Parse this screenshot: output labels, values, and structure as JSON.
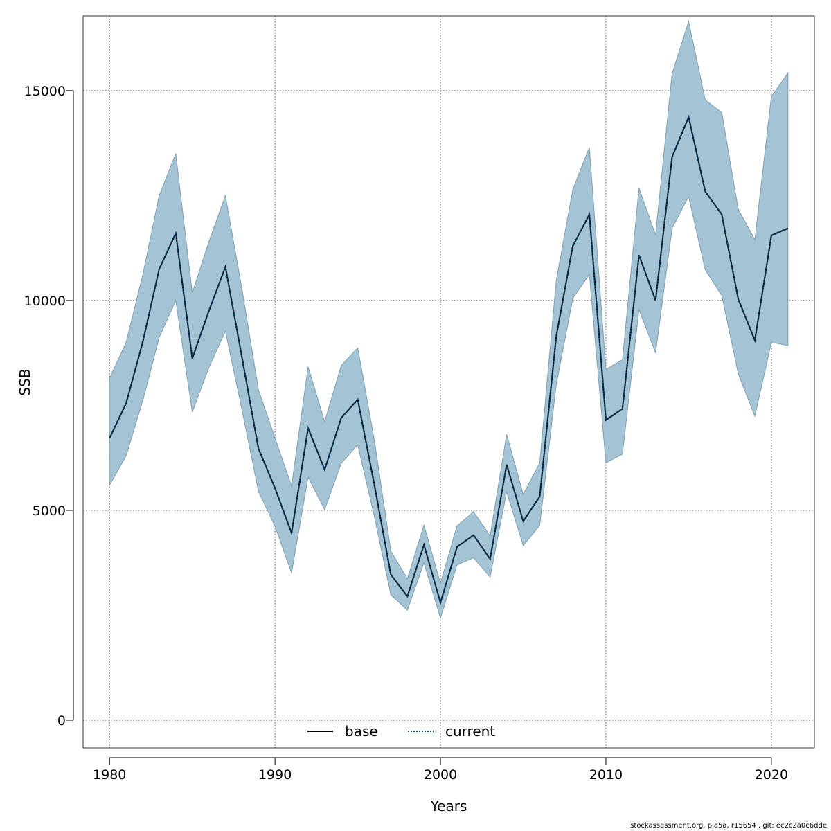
{
  "chart_data": {
    "type": "line",
    "xlabel": "Years",
    "ylabel": "SSB",
    "xlim": [
      1978.4,
      2022.6
    ],
    "ylim": [
      -660,
      16780
    ],
    "x_ticks": [
      1980,
      1990,
      2000,
      2010,
      2020
    ],
    "y_ticks": [
      0,
      5000,
      10000,
      15000
    ],
    "grid": true,
    "legend_position": "bottom-center",
    "colors": {
      "band": "#a4c3d4",
      "band_edge": "#7f9dad",
      "current": "#004a7a",
      "base": "#000000"
    },
    "x": [
      1980,
      1981,
      1982,
      1983,
      1984,
      1985,
      1986,
      1987,
      1988,
      1989,
      1990,
      1991,
      1992,
      1993,
      1994,
      1995,
      1996,
      1997,
      1998,
      1999,
      2000,
      2001,
      2002,
      2003,
      2004,
      2005,
      2006,
      2007,
      2008,
      2009,
      2010,
      2011,
      2012,
      2013,
      2014,
      2015,
      2016,
      2017,
      2018,
      2019,
      2020,
      2021
    ],
    "series": [
      {
        "name": "base",
        "style": "solid",
        "values": [
          6720,
          7550,
          9000,
          10750,
          11600,
          8620,
          9750,
          10800,
          8650,
          6470,
          5530,
          4460,
          6960,
          5970,
          7200,
          7640,
          5620,
          3470,
          2950,
          4180,
          2800,
          4130,
          4410,
          3840,
          6090,
          4740,
          5330,
          9150,
          11300,
          12050,
          7150,
          7420,
          11080,
          10000,
          13420,
          14370,
          12600,
          12050,
          10030,
          9050,
          11550,
          11720
        ]
      },
      {
        "name": "current",
        "style": "dotted",
        "values": [
          6720,
          7550,
          9000,
          10750,
          11600,
          8620,
          9750,
          10800,
          8650,
          6470,
          5530,
          4460,
          6960,
          5970,
          7200,
          7640,
          5620,
          3470,
          2950,
          4180,
          2800,
          4130,
          4410,
          3840,
          6090,
          4740,
          5330,
          9150,
          11300,
          12050,
          7150,
          7420,
          11080,
          10000,
          13420,
          14370,
          12600,
          12050,
          10030,
          9050,
          11550,
          11720
        ]
      }
    ],
    "upper": [
      8150,
      9000,
      10600,
      12500,
      13500,
      10180,
      11400,
      12500,
      10280,
      7870,
      6720,
      5580,
      8420,
      7110,
      8450,
      8870,
      6680,
      4030,
      3370,
      4650,
      3260,
      4630,
      4970,
      4390,
      6810,
      5380,
      6130,
      10480,
      12650,
      13650,
      8360,
      8590,
      12680,
      11560,
      15400,
      16650,
      14780,
      14480,
      12170,
      11450,
      14860,
      15420
    ],
    "lower": [
      5600,
      6300,
      7600,
      9120,
      10000,
      7340,
      8400,
      9270,
      7400,
      5450,
      4620,
      3510,
      5790,
      5020,
      6120,
      6560,
      4860,
      2990,
      2620,
      3750,
      2430,
      3700,
      3870,
      3410,
      5440,
      4160,
      4640,
      8000,
      10050,
      10620,
      6130,
      6340,
      9780,
      8750,
      11720,
      12480,
      10730,
      10120,
      8250,
      7240,
      9000,
      8930
    ],
    "legend": [
      "base",
      "current"
    ]
  },
  "footer_text": "stockassessment.org, pla5a, r15654 , git: ec2c2a0c6dde"
}
